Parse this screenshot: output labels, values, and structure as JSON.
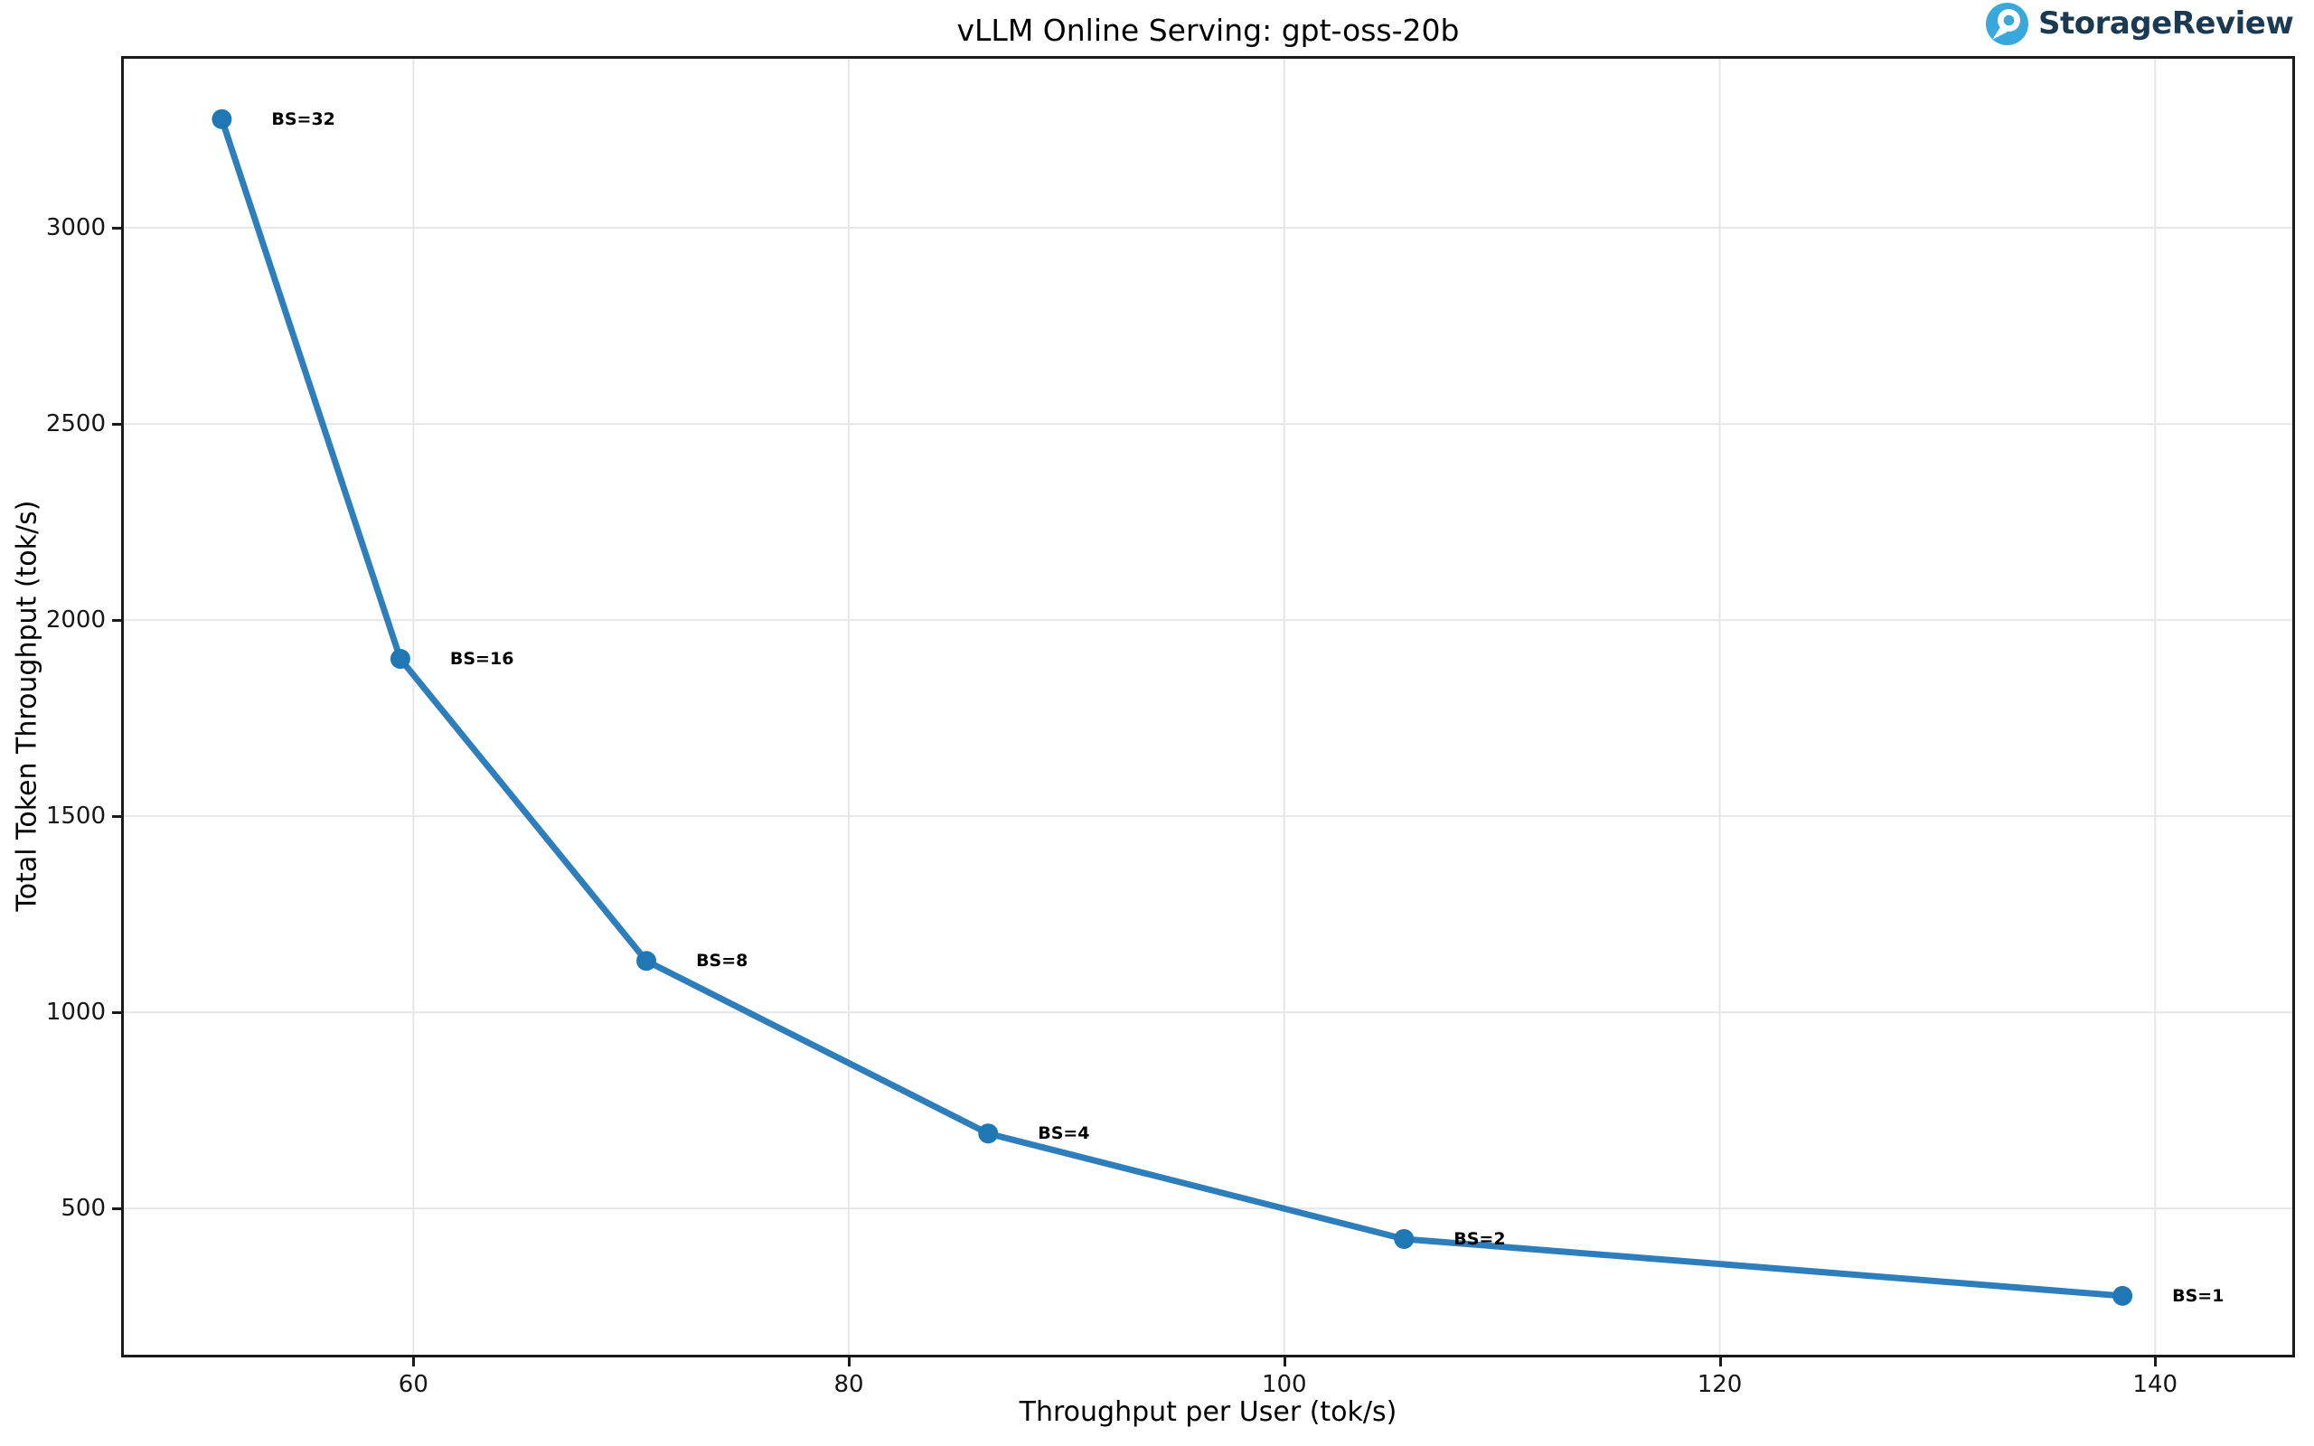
{
  "header": {
    "logo_text": "StorageReview",
    "logo_icon_color": "#39a9dd",
    "logo_text_color": "#1b3a52"
  },
  "chart_data": {
    "type": "line",
    "title": "vLLM Online Serving: gpt-oss-20b",
    "xlabel": "Throughput per User (tok/s)",
    "ylabel": "Total Token Throughput (tok/s)",
    "xlim": [
      46.7,
      146.3
    ],
    "ylim": [
      127,
      3431
    ],
    "xticks": [
      60,
      80,
      100,
      120,
      140
    ],
    "yticks": [
      500,
      1000,
      1500,
      2000,
      2500,
      3000
    ],
    "grid": true,
    "legend": "none",
    "line_color": "#2e7ebc",
    "marker_color": "#1f77b4",
    "grid_color": "#e7e7e7",
    "series": [
      {
        "name": "gpt-oss-20b",
        "points": [
          {
            "label": "BS=32",
            "x": 51.2,
            "y": 3277
          },
          {
            "label": "BS=16",
            "x": 59.4,
            "y": 1901
          },
          {
            "label": "BS=8",
            "x": 70.7,
            "y": 1131
          },
          {
            "label": "BS=4",
            "x": 86.4,
            "y": 691
          },
          {
            "label": "BS=2",
            "x": 105.5,
            "y": 422
          },
          {
            "label": "BS=1",
            "x": 138.5,
            "y": 277
          }
        ]
      }
    ]
  }
}
